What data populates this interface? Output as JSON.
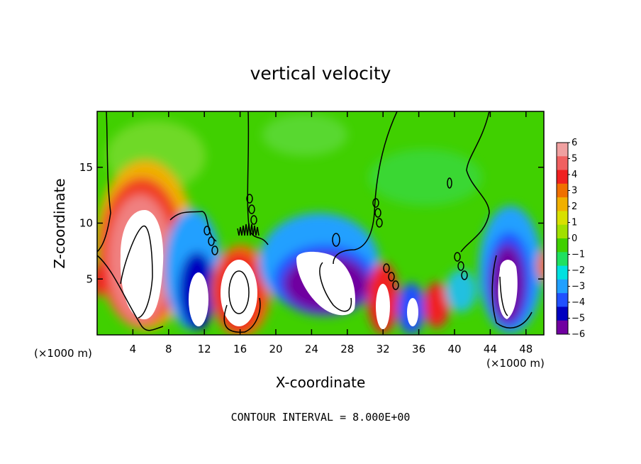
{
  "chart_data": {
    "type": "heatmap",
    "title": "vertical velocity",
    "xlabel": "X-coordinate",
    "ylabel": "Z-coordinate",
    "x_unit_label": "(×1000 m)",
    "z_unit_label": "(×1000 m)",
    "xlim": [
      0,
      50
    ],
    "ylim": [
      0,
      20
    ],
    "x_ticks": [
      4,
      8,
      12,
      16,
      20,
      24,
      28,
      32,
      36,
      40,
      44,
      48
    ],
    "y_ticks": [
      5,
      10,
      15
    ],
    "colorbar": {
      "ticks": [
        6,
        5,
        4,
        3,
        2,
        1,
        0,
        -1,
        -2,
        -3,
        -4,
        -5,
        -6
      ],
      "range": [
        -6,
        6
      ],
      "colors": [
        "#f0a0a0",
        "#f06060",
        "#f02020",
        "#f07000",
        "#f0b000",
        "#d8e000",
        "#a0e000",
        "#40d000",
        "#20e060",
        "#00e0e0",
        "#20a0ff",
        "#2050ff",
        "#0000c0",
        "#7000a0"
      ]
    },
    "features": [
      {
        "kind": "updraft",
        "x": 5,
        "z": 6.5,
        "peak": 6
      },
      {
        "kind": "downdraft",
        "x": 11,
        "z": 4,
        "peak": -6
      },
      {
        "kind": "updraft",
        "x": 16,
        "z": 3.5,
        "peak": 6
      },
      {
        "kind": "downdraft",
        "x": 26,
        "z": 5,
        "peak": -6
      },
      {
        "kind": "updraft",
        "x": 32,
        "z": 3,
        "peak": 6
      },
      {
        "kind": "downdraft",
        "x": 35.5,
        "z": 2,
        "peak": -6
      },
      {
        "kind": "updraft",
        "x": 38.5,
        "z": 2.5,
        "peak": 5
      },
      {
        "kind": "downdraft",
        "x": 46,
        "z": 4.5,
        "peak": -6
      }
    ],
    "contour_interval": "CONTOUR INTERVAL = 8.000E+00",
    "grid": false,
    "legend": "colorbar-right"
  }
}
